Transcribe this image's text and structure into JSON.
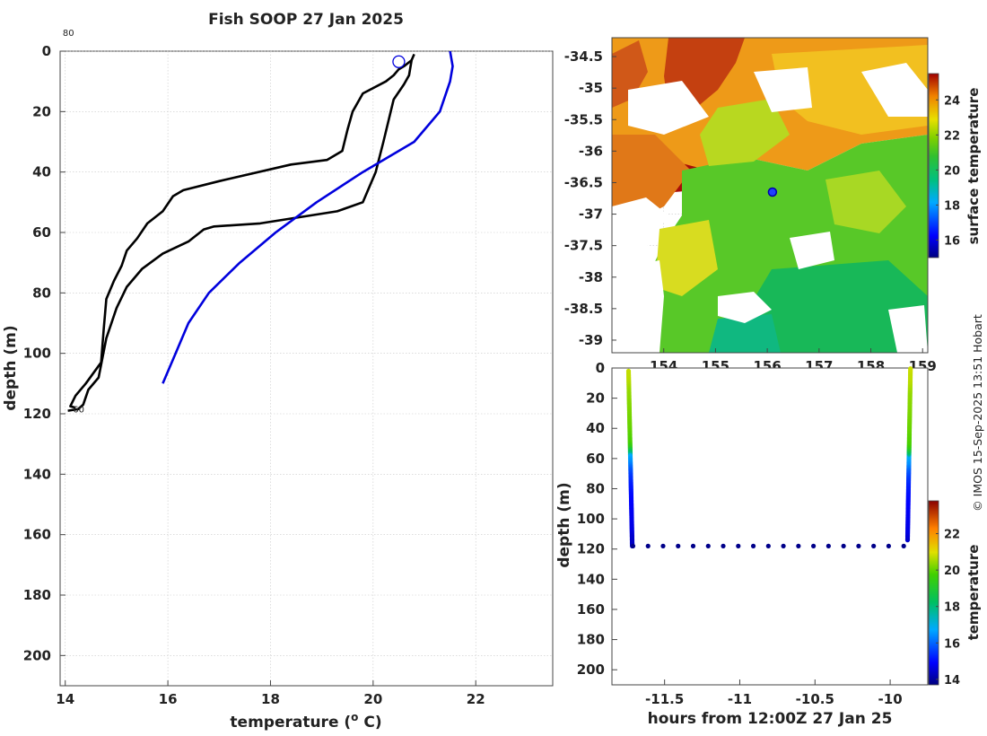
{
  "title": "Fish SOOP 27 Jan 2025",
  "credit": "© IMOS 15-Sep-2025 13:51 Hobart",
  "colors": {
    "black_profile": "#000000",
    "blue_profile": "#0000dd",
    "grid": "#c8c8c8"
  },
  "chart_data": [
    {
      "type": "line",
      "panel": "temperature-depth-profile",
      "title": "Fish SOOP 27 Jan 2025",
      "xlabel": "temperature (",
      "xlabel_super": "o",
      "xlabel_unit": " C)",
      "ylabel": "depth (m)",
      "xlim": [
        13.9,
        23.5
      ],
      "ylim": [
        210,
        0
      ],
      "x_ticks": [
        "14",
        "16",
        "18",
        "20",
        "22"
      ],
      "y_ticks": [
        "0",
        "20",
        "40",
        "60",
        "80",
        "100",
        "120",
        "140",
        "160",
        "180",
        "200"
      ],
      "annotations": [
        {
          "text": "80",
          "x": 13.95,
          "y": -5
        },
        {
          "text": "60",
          "x": 14.15,
          "y": 119.5
        }
      ],
      "marker": {
        "symbol": "open-circle",
        "temperature": 20.5,
        "depth": 3.5
      },
      "series": [
        {
          "name": "profile-down",
          "color": "#000000",
          "points": [
            [
              20.8,
              1
            ],
            [
              20.75,
              3
            ],
            [
              20.7,
              8
            ],
            [
              20.6,
              11
            ],
            [
              20.4,
              16
            ],
            [
              20.2,
              30
            ],
            [
              20.05,
              40
            ],
            [
              19.8,
              50
            ],
            [
              19.3,
              53
            ],
            [
              17.8,
              57
            ],
            [
              16.9,
              58
            ],
            [
              16.7,
              59
            ],
            [
              16.4,
              63
            ],
            [
              15.9,
              67
            ],
            [
              15.5,
              72
            ],
            [
              15.2,
              78
            ],
            [
              15.0,
              85
            ],
            [
              14.8,
              95
            ],
            [
              14.65,
              108
            ],
            [
              14.45,
              112
            ],
            [
              14.35,
              117
            ],
            [
              14.25,
              118.5
            ],
            [
              14.05,
              119
            ]
          ]
        },
        {
          "name": "profile-up",
          "color": "#000000",
          "points": [
            [
              20.75,
              3
            ],
            [
              20.6,
              5
            ],
            [
              20.5,
              6
            ],
            [
              20.4,
              8
            ],
            [
              20.25,
              10
            ],
            [
              19.8,
              14
            ],
            [
              19.6,
              20
            ],
            [
              19.5,
              26
            ],
            [
              19.4,
              33
            ],
            [
              19.1,
              36
            ],
            [
              18.4,
              37.5
            ],
            [
              17.0,
              43
            ],
            [
              16.3,
              46
            ],
            [
              16.1,
              48
            ],
            [
              15.9,
              53
            ],
            [
              15.6,
              57
            ],
            [
              15.4,
              62
            ],
            [
              15.2,
              66
            ],
            [
              15.1,
              71
            ],
            [
              14.95,
              76
            ],
            [
              14.8,
              82
            ],
            [
              14.75,
              92
            ],
            [
              14.7,
              103
            ],
            [
              14.4,
              110
            ],
            [
              14.2,
              114
            ],
            [
              14.1,
              117.5
            ],
            [
              14.2,
              118
            ]
          ]
        },
        {
          "name": "climatology",
          "color": "#0000dd",
          "points": [
            [
              21.5,
              0
            ],
            [
              21.55,
              5
            ],
            [
              21.5,
              10
            ],
            [
              21.3,
              20
            ],
            [
              20.8,
              30
            ],
            [
              19.8,
              40
            ],
            [
              18.9,
              50
            ],
            [
              18.1,
              60
            ],
            [
              17.4,
              70
            ],
            [
              16.8,
              80
            ],
            [
              16.4,
              90
            ],
            [
              16.15,
              100
            ],
            [
              15.9,
              110
            ]
          ]
        }
      ]
    },
    {
      "type": "heatmap",
      "panel": "surface-temperature-map",
      "colorbar_label": "surface temperature",
      "colorbar_ticks": [
        "16",
        "18",
        "20",
        "22",
        "24"
      ],
      "colorbar_range": [
        15,
        25.5
      ],
      "xlim": [
        153.0,
        159.1
      ],
      "ylim": [
        -39.2,
        -34.2
      ],
      "x_ticks": [
        "154",
        "155",
        "156",
        "157",
        "158",
        "159"
      ],
      "y_ticks": [
        "-34.5",
        "-35",
        "-35.5",
        "-36",
        "-36.5",
        "-37",
        "-37.5",
        "-38",
        "-38.5",
        "-39"
      ],
      "marker": {
        "lon": 156.1,
        "lat": -36.65
      }
    },
    {
      "type": "scatter",
      "panel": "depth-time-section",
      "xlabel": "hours from 12:00Z 27 Jan 25",
      "ylabel": "depth (m)",
      "xlim": [
        -11.85,
        -9.75
      ],
      "ylim": [
        210,
        0
      ],
      "x_ticks": [
        "-11.5",
        "-11",
        "-10.5",
        "-10"
      ],
      "y_ticks": [
        "0",
        "20",
        "40",
        "60",
        "80",
        "100",
        "120",
        "140",
        "160",
        "180",
        "200"
      ],
      "colorbar_label": "temperature",
      "colorbar_ticks": [
        "14",
        "16",
        "18",
        "20",
        "22"
      ],
      "colorbar_range": [
        13.7,
        23.8
      ],
      "down_cast": {
        "hour_start": -11.74,
        "hour_end": -11.715,
        "depth_end": 118
      },
      "up_cast": {
        "hour_start": -9.885,
        "hour_end": -9.865,
        "depth_start": 118
      },
      "bottom_track": {
        "depth": 118,
        "hours": [
          -11.71,
          -11.61,
          -11.51,
          -11.41,
          -11.31,
          -11.21,
          -11.11,
          -11.01,
          -10.91,
          -10.81,
          -10.71,
          -10.61,
          -10.51,
          -10.41,
          -10.31,
          -10.21,
          -10.11,
          -10.01,
          -9.91
        ]
      }
    }
  ]
}
